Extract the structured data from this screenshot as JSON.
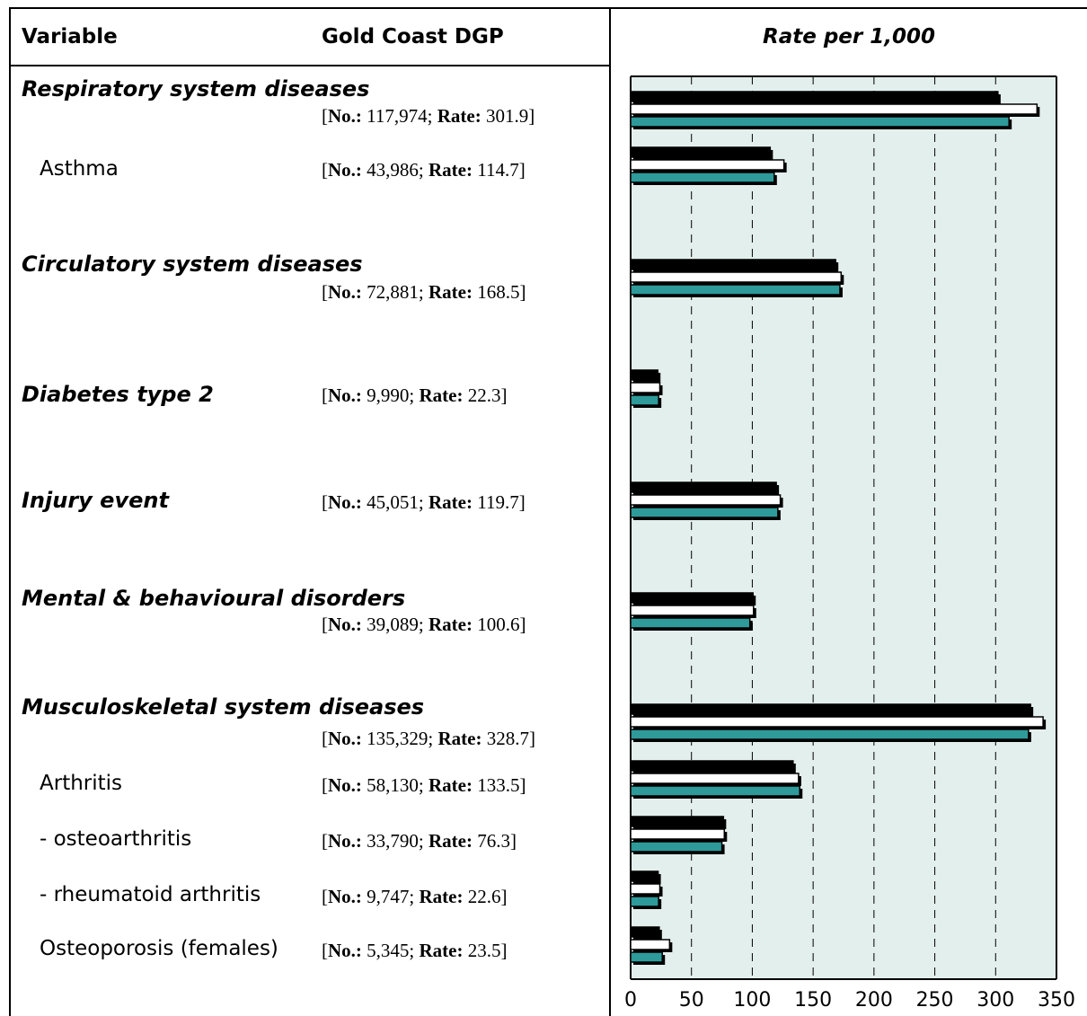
{
  "header": {
    "variable": "Variable",
    "gold_coast": "Gold Coast DGP",
    "rate": "Rate per 1,000"
  },
  "stat_labels": {
    "no": "No.:",
    "rate": "Rate:"
  },
  "rows": [
    {
      "label": "Respiratory system diseases",
      "kind": "category",
      "no": "117,974",
      "rate": "301.9"
    },
    {
      "label": "Asthma",
      "kind": "sub",
      "no": "43,986",
      "rate": "114.7"
    },
    {
      "label": "Circulatory system diseases",
      "kind": "category",
      "no": "72,881",
      "rate": "168.5"
    },
    {
      "label": "Diabetes type 2",
      "kind": "category",
      "no": "9,990",
      "rate": "22.3"
    },
    {
      "label": "Injury event",
      "kind": "category",
      "no": "45,051",
      "rate": "119.7"
    },
    {
      "label": "Mental & behavioural disorders",
      "kind": "category",
      "no": "39,089",
      "rate": "100.6"
    },
    {
      "label": "Musculoskeletal system diseases",
      "kind": "category",
      "no": "135,329",
      "rate": "328.7"
    },
    {
      "label": "Arthritis",
      "kind": "sub",
      "no": "58,130",
      "rate": "133.5"
    },
    {
      "label": "- osteoarthritis",
      "kind": "sub",
      "no": "33,790",
      "rate": "76.3"
    },
    {
      "label": "- rheumatoid arthritis",
      "kind": "sub",
      "no": "9,747",
      "rate": "22.6"
    },
    {
      "label": "Osteoporosis (females)",
      "kind": "sub",
      "no": "5,345",
      "rate": "23.5"
    }
  ],
  "colors": {
    "series_black": "#000000",
    "series_white": "#ffffff",
    "series_teal": "#2e9a9a",
    "plot_background": "#e3efec",
    "gridline": "#000000"
  },
  "chart_data": {
    "type": "bar",
    "orientation": "horizontal",
    "categories": [
      "Respiratory system diseases",
      "Asthma",
      "Circulatory system diseases",
      "Diabetes type 2",
      "Injury event",
      "Mental & behavioural disorders",
      "Musculoskeletal system diseases",
      "Arthritis",
      "- osteoarthritis",
      "- rheumatoid arthritis",
      "Osteoporosis (females)"
    ],
    "series": [
      {
        "color": "#000000",
        "values": [
          301.9,
          114.7,
          168.5,
          22.3,
          119.7,
          100.6,
          328.7,
          133.5,
          76.3,
          22.6,
          23.5
        ]
      },
      {
        "color": "#ffffff",
        "values": [
          334,
          126,
          173,
          24,
          123,
          101,
          339,
          138,
          77,
          24,
          32
        ]
      },
      {
        "color": "#2e9a9a",
        "values": [
          311,
          118,
          172,
          23,
          121,
          98,
          327,
          139,
          75,
          23,
          26
        ]
      }
    ],
    "title": "Rate per 1,000",
    "xlim": [
      0,
      350
    ],
    "xticks": [
      0,
      50,
      100,
      150,
      200,
      250,
      300,
      350
    ],
    "grid": "vertical dashed",
    "legend": "none"
  }
}
